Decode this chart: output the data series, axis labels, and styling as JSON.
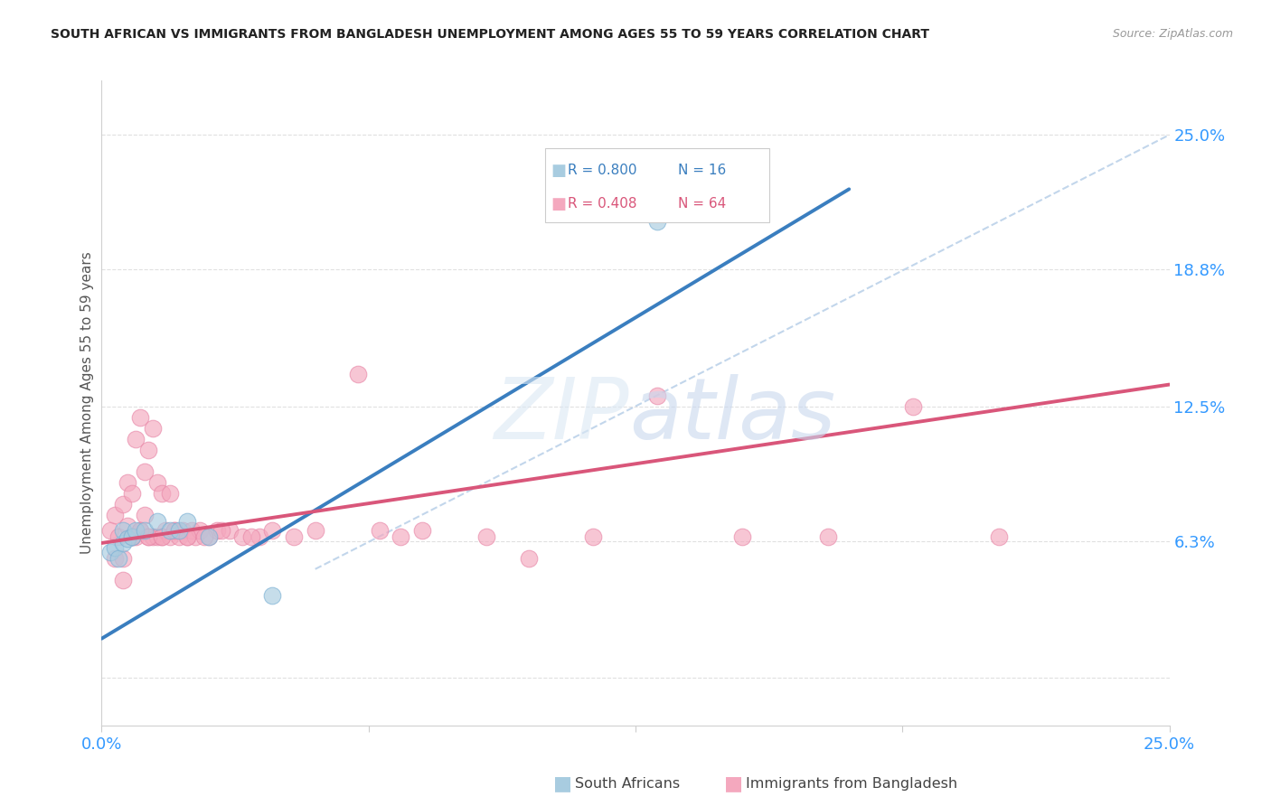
{
  "title": "SOUTH AFRICAN VS IMMIGRANTS FROM BANGLADESH UNEMPLOYMENT AMONG AGES 55 TO 59 YEARS CORRELATION CHART",
  "source": "Source: ZipAtlas.com",
  "ylabel": "Unemployment Among Ages 55 to 59 years",
  "xmin": 0.0,
  "xmax": 0.25,
  "ymin": -0.022,
  "ymax": 0.275,
  "blue_color": "#a8cce0",
  "pink_color": "#f4a8be",
  "blue_line_color": "#3a7ebf",
  "pink_line_color": "#d9567a",
  "blue_edge_color": "#7ab0d4",
  "pink_edge_color": "#e888a8",
  "south_africans_x": [
    0.002,
    0.003,
    0.004,
    0.005,
    0.005,
    0.006,
    0.007,
    0.008,
    0.01,
    0.013,
    0.016,
    0.018,
    0.02,
    0.025,
    0.04,
    0.13
  ],
  "south_africans_y": [
    0.058,
    0.06,
    0.055,
    0.062,
    0.068,
    0.064,
    0.065,
    0.068,
    0.068,
    0.072,
    0.068,
    0.068,
    0.072,
    0.065,
    0.038,
    0.21
  ],
  "bangladesh_x": [
    0.002,
    0.003,
    0.003,
    0.004,
    0.005,
    0.005,
    0.006,
    0.006,
    0.007,
    0.007,
    0.008,
    0.008,
    0.009,
    0.009,
    0.01,
    0.01,
    0.011,
    0.011,
    0.012,
    0.012,
    0.013,
    0.013,
    0.014,
    0.014,
    0.015,
    0.016,
    0.016,
    0.017,
    0.018,
    0.019,
    0.02,
    0.021,
    0.022,
    0.023,
    0.025,
    0.027,
    0.03,
    0.033,
    0.037,
    0.04,
    0.045,
    0.05,
    0.06,
    0.065,
    0.07,
    0.075,
    0.09,
    0.1,
    0.115,
    0.13,
    0.15,
    0.17,
    0.19,
    0.21,
    0.005,
    0.007,
    0.009,
    0.011,
    0.014,
    0.017,
    0.02,
    0.024,
    0.028,
    0.035
  ],
  "bangladesh_y": [
    0.068,
    0.055,
    0.075,
    0.065,
    0.055,
    0.08,
    0.07,
    0.09,
    0.065,
    0.085,
    0.065,
    0.11,
    0.068,
    0.12,
    0.075,
    0.095,
    0.065,
    0.105,
    0.065,
    0.115,
    0.065,
    0.09,
    0.065,
    0.085,
    0.068,
    0.065,
    0.085,
    0.068,
    0.065,
    0.068,
    0.065,
    0.068,
    0.065,
    0.068,
    0.065,
    0.068,
    0.068,
    0.065,
    0.065,
    0.068,
    0.065,
    0.068,
    0.14,
    0.068,
    0.065,
    0.068,
    0.065,
    0.055,
    0.065,
    0.13,
    0.065,
    0.065,
    0.125,
    0.065,
    0.045,
    0.065,
    0.068,
    0.065,
    0.065,
    0.068,
    0.065,
    0.065,
    0.068,
    0.065
  ],
  "blue_trend_x": [
    0.0,
    0.175
  ],
  "blue_trend_y": [
    0.018,
    0.225
  ],
  "pink_trend_x": [
    0.0,
    0.25
  ],
  "pink_trend_y": [
    0.062,
    0.135
  ],
  "ref_line_x": [
    0.05,
    0.25
  ],
  "ref_line_y": [
    0.05,
    0.25
  ],
  "ytick_positions": [
    0.0,
    0.063,
    0.125,
    0.188,
    0.25
  ],
  "ytick_labels": [
    "",
    "6.3%",
    "12.5%",
    "18.8%",
    "25.0%"
  ],
  "xtick_positions": [
    0.0,
    0.0625,
    0.125,
    0.1875,
    0.25
  ],
  "xtick_labels": [
    "0.0%",
    "",
    "",
    "",
    "25.0%"
  ],
  "legend_r1": "R = 0.800",
  "legend_n1": "N = 16",
  "legend_r2": "R = 0.408",
  "legend_n2": "N = 64",
  "legend_label1": "South Africans",
  "legend_label2": "Immigrants from Bangladesh"
}
